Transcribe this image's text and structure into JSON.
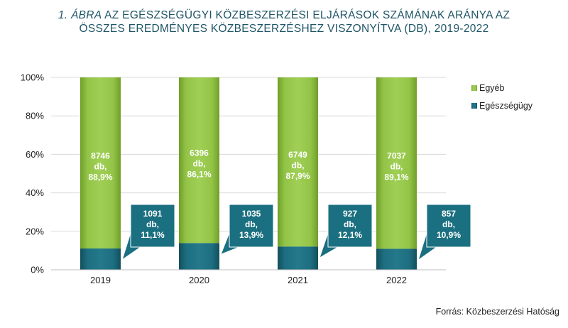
{
  "title": {
    "lead": "1. ÁBRA",
    "line1_rest": " AZ EGÉSZSÉGÜGYI KÖZBESZERZÉSI ELJÁRÁSOK SZÁMÁNAK ARÁNYA AZ",
    "line2": "ÖSSZES EREDMÉNYES KÖZBESZERZÉSHEZ VISZONYÍTVA (DB), 2019-2022"
  },
  "source": "Forrás: Közbeszerzési Hatóság",
  "colors": {
    "egyeb": "#8dc63f",
    "egeszsegugy": "#1d6e80",
    "callout": "#1a6f80"
  },
  "chart_data": {
    "type": "bar",
    "stacked": "percent",
    "categories": [
      "2019",
      "2020",
      "2021",
      "2022"
    ],
    "ylim": [
      0,
      100
    ],
    "yticks": [
      "0%",
      "20%",
      "40%",
      "60%",
      "80%",
      "100%"
    ],
    "legend_position": "right",
    "series": [
      {
        "name": "Egészségügy",
        "values": [
          11.1,
          13.9,
          12.1,
          10.9
        ],
        "labels": [
          [
            "1091",
            "db,",
            "11,1%"
          ],
          [
            "1035",
            "db,",
            "13,9%"
          ],
          [
            "927",
            "db,",
            "12,1%"
          ],
          [
            "857",
            "db,",
            "10,9%"
          ]
        ]
      },
      {
        "name": "Egyéb",
        "values": [
          88.9,
          86.1,
          87.9,
          89.1
        ],
        "labels": [
          [
            "8746",
            "db,",
            "88,9%"
          ],
          [
            "6396",
            "db,",
            "86,1%"
          ],
          [
            "6749",
            "db,",
            "87,9%"
          ],
          [
            "7037",
            "db,",
            "89,1%"
          ]
        ]
      }
    ]
  }
}
